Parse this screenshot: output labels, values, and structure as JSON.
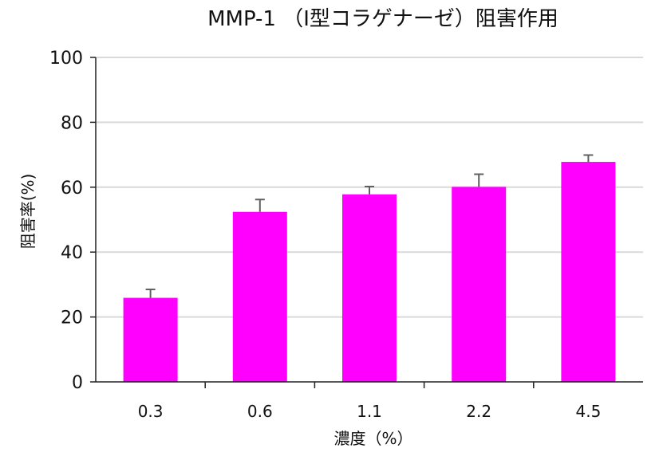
{
  "chart_data": {
    "type": "bar",
    "title": "MMP-1 （Ⅰ型コラゲナーゼ）阻害作用",
    "xlabel": "濃度（%）",
    "ylabel": "阻害率(%)",
    "categories": [
      "0.3",
      "0.6",
      "1.1",
      "2.2",
      "4.5"
    ],
    "values": [
      25.9,
      52.4,
      57.8,
      60.1,
      67.8
    ],
    "error_plus": [
      2.6,
      3.8,
      2.4,
      3.9,
      2.1
    ],
    "ylim": [
      0,
      100
    ],
    "yticks": [
      0,
      20,
      40,
      60,
      80,
      100
    ],
    "grid": true,
    "bar_color": "#ff00ff",
    "error_color": "#606060",
    "grid_color": "#d9d9d9"
  }
}
